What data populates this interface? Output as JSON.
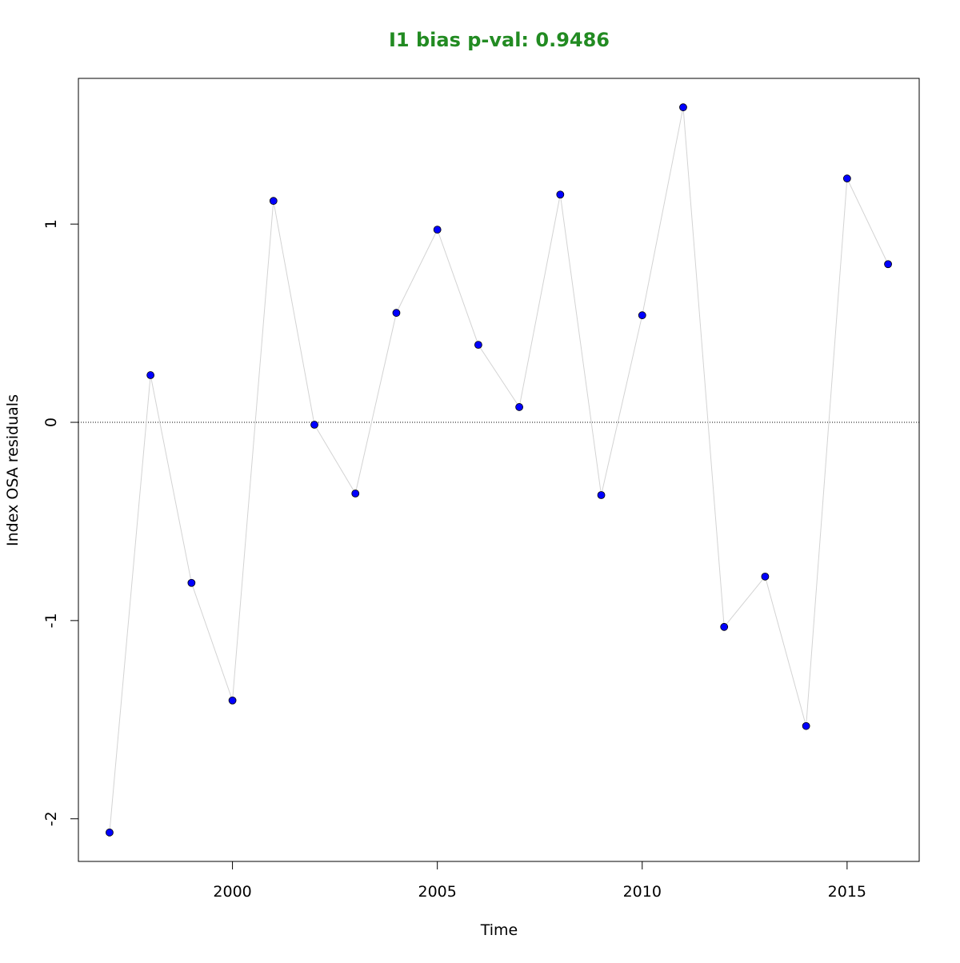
{
  "chart_data": {
    "type": "line",
    "title": "I1 bias p-val: 0.9486",
    "title_color": "#228b22",
    "x_label": "Time",
    "y_label": "Index OSA residuals",
    "x": [
      1997,
      1998,
      1999,
      2000,
      2001,
      2002,
      2003,
      2004,
      2005,
      2006,
      2007,
      2008,
      2009,
      2010,
      2011,
      2012,
      2013,
      2014,
      2015,
      2016
    ],
    "series": [
      {
        "name": "I1",
        "color": "#0000ff",
        "line_color": "#d3d3d3",
        "values": [
          -2.069,
          0.238,
          -0.81,
          -1.403,
          1.117,
          -0.012,
          -0.359,
          0.552,
          0.972,
          0.391,
          0.077,
          1.149,
          -0.367,
          0.54,
          1.589,
          -1.032,
          -0.778,
          -1.532,
          1.23,
          0.798
        ]
      }
    ],
    "xlim": [
      1996.24,
      2016.76
    ],
    "xticks": [
      2000,
      2005,
      2010,
      2015
    ],
    "ylim": [
      -2.215,
      1.735
    ],
    "yticks": [
      -2,
      -1,
      0,
      1
    ],
    "reference_line": 0
  }
}
